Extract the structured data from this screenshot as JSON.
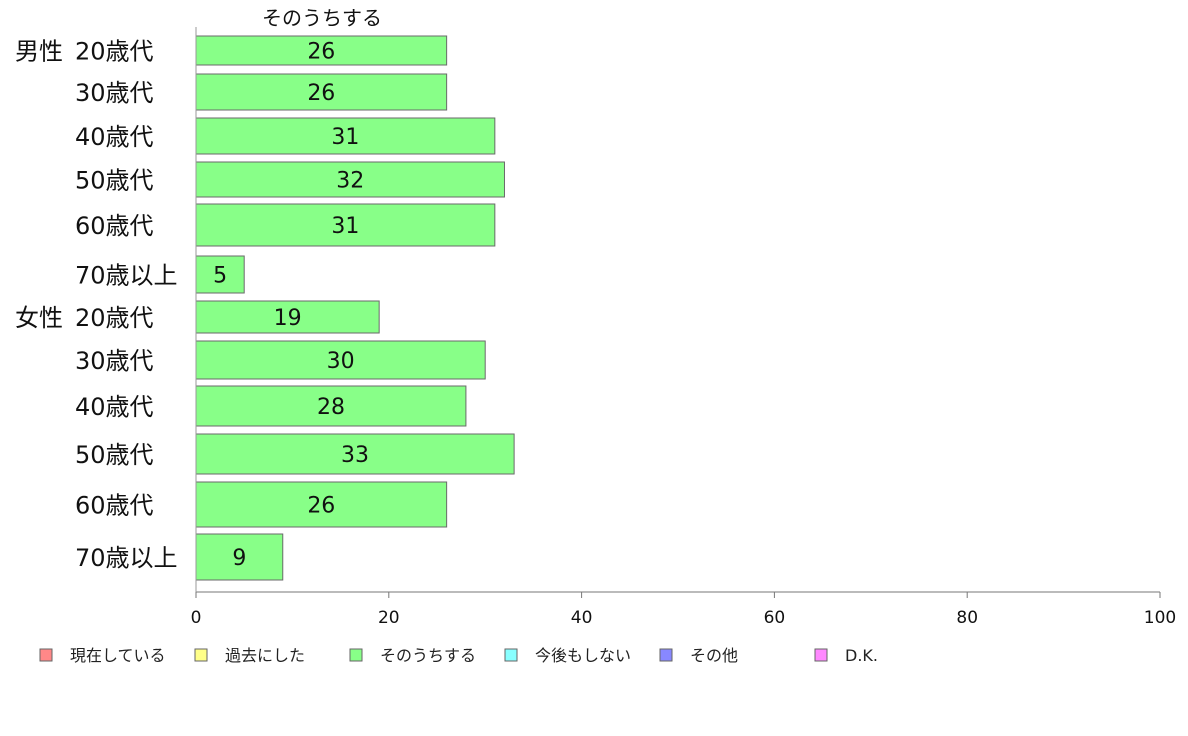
{
  "chart_data": {
    "type": "bar",
    "orientation": "horizontal",
    "series_title": "そのうちする",
    "groups": [
      {
        "label": "男性",
        "categories": [
          "20歳代",
          "30歳代",
          "40歳代",
          "50歳代",
          "60歳代",
          "70歳以上"
        ],
        "values": [
          26,
          26,
          31,
          32,
          31,
          5
        ]
      },
      {
        "label": "女性",
        "categories": [
          "20歳代",
          "30歳代",
          "40歳代",
          "50歳代",
          "60歳代",
          "70歳以上"
        ],
        "values": [
          19,
          30,
          28,
          33,
          26,
          9
        ]
      }
    ],
    "bar_color": "#88ff88",
    "xlim": [
      0,
      100
    ],
    "xticks": [
      0,
      20,
      40,
      60,
      80,
      100
    ],
    "grid": false,
    "legend_position": "bottom",
    "legend": [
      {
        "label": "現在している",
        "color": "#ff8888"
      },
      {
        "label": "過去にした",
        "color": "#ffff88"
      },
      {
        "label": "そのうちする",
        "color": "#88ff88"
      },
      {
        "label": "今後もしない",
        "color": "#88ffff"
      },
      {
        "label": "その他",
        "color": "#8888ff"
      },
      {
        "label": "D.K.",
        "color": "#ff88ff"
      }
    ]
  }
}
